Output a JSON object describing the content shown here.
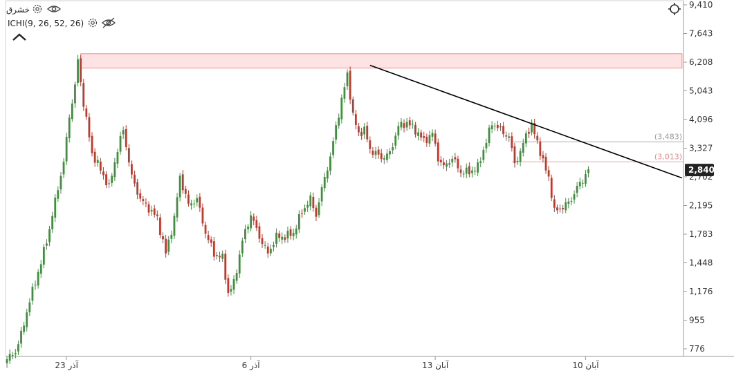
{
  "legend": {
    "symbol": "خشرق",
    "indicator": "ICHI(9, 26, 52, 26)"
  },
  "colors": {
    "up": "#3f8f3c",
    "down": "#c0392b",
    "trendline": "#000000",
    "resistance_zone_fill": "#fde3e3",
    "resistance_zone_stroke": "#f08c8c",
    "price_tag": "#222222",
    "level_upper": "#aaaaaa",
    "level_lower": "#f2a0a0"
  },
  "chart_data": {
    "type": "candlestick",
    "y_scale": "log",
    "ylim": [
      700,
      9410
    ],
    "y_ticks": [
      "9,410",
      "7,643",
      "6,208",
      "5,043",
      "4,096",
      "3,327",
      "2,702",
      "2,195",
      "1,783",
      "1,448",
      "1,176",
      "955",
      "776"
    ],
    "y_tick_values": [
      9410,
      7643,
      6208,
      5043,
      4096,
      3327,
      2702,
      2195,
      1783,
      1448,
      1176,
      955,
      776
    ],
    "x_ticks": [
      {
        "label": "23 آذر",
        "index": 21
      },
      {
        "label": "6 آذر",
        "index": 86
      },
      {
        "label": "13 آبان",
        "index": 151
      },
      {
        "label": "10 آبان",
        "index": 204
      }
    ],
    "n_bars": 206,
    "last_price": "2,840",
    "last_price_value": 2840,
    "horizontal_levels": [
      {
        "label": "(3,483)",
        "value": 3483
      },
      {
        "label": "(3,013)",
        "value": 3013
      }
    ],
    "resistance_zone": {
      "low": 5950,
      "high": 6600,
      "from_index": 26,
      "to_index": 238
    },
    "trendline": {
      "from_index": 128,
      "from_value": 6070,
      "to_index": 238,
      "to_value": 2680
    },
    "anchors": [
      [
        0,
        720
      ],
      [
        3,
        760
      ],
      [
        5,
        860
      ],
      [
        8,
        1100
      ],
      [
        12,
        1450
      ],
      [
        15,
        1850
      ],
      [
        18,
        2500
      ],
      [
        20,
        3000
      ],
      [
        22,
        4200
      ],
      [
        24,
        5200
      ],
      [
        25,
        6300
      ],
      [
        27,
        4600
      ],
      [
        30,
        3200
      ],
      [
        33,
        2850
      ],
      [
        36,
        2500
      ],
      [
        39,
        3300
      ],
      [
        41,
        3800
      ],
      [
        44,
        2700
      ],
      [
        47,
        2300
      ],
      [
        50,
        2150
      ],
      [
        53,
        2000
      ],
      [
        56,
        1550
      ],
      [
        59,
        2000
      ],
      [
        61,
        2700
      ],
      [
        64,
        2200
      ],
      [
        67,
        2300
      ],
      [
        70,
        1800
      ],
      [
        73,
        1550
      ],
      [
        76,
        1500
      ],
      [
        78,
        1160
      ],
      [
        80,
        1250
      ],
      [
        83,
        1700
      ],
      [
        86,
        2050
      ],
      [
        89,
        1750
      ],
      [
        92,
        1550
      ],
      [
        95,
        1750
      ],
      [
        98,
        1750
      ],
      [
        101,
        1800
      ],
      [
        104,
        2100
      ],
      [
        107,
        2300
      ],
      [
        109,
        2050
      ],
      [
        112,
        2700
      ],
      [
        114,
        3100
      ],
      [
        116,
        3900
      ],
      [
        118,
        4700
      ],
      [
        120,
        5700
      ],
      [
        122,
        4200
      ],
      [
        124,
        3700
      ],
      [
        126,
        3800
      ],
      [
        128,
        3300
      ],
      [
        130,
        3200
      ],
      [
        132,
        3100
      ],
      [
        135,
        3200
      ],
      [
        138,
        3900
      ],
      [
        141,
        4000
      ],
      [
        144,
        3800
      ],
      [
        147,
        3500
      ],
      [
        150,
        3700
      ],
      [
        152,
        3100
      ],
      [
        154,
        2900
      ],
      [
        157,
        3100
      ],
      [
        160,
        2800
      ],
      [
        163,
        2800
      ],
      [
        166,
        2900
      ],
      [
        169,
        3500
      ],
      [
        171,
        4000
      ],
      [
        174,
        3800
      ],
      [
        177,
        3600
      ],
      [
        179,
        3000
      ],
      [
        181,
        3200
      ],
      [
        183,
        3700
      ],
      [
        185,
        3900
      ],
      [
        187,
        3500
      ],
      [
        189,
        3000
      ],
      [
        191,
        2700
      ],
      [
        193,
        2100
      ],
      [
        195,
        2150
      ],
      [
        197,
        2200
      ],
      [
        199,
        2300
      ],
      [
        201,
        2500
      ],
      [
        203,
        2650
      ],
      [
        205,
        2840
      ]
    ]
  }
}
